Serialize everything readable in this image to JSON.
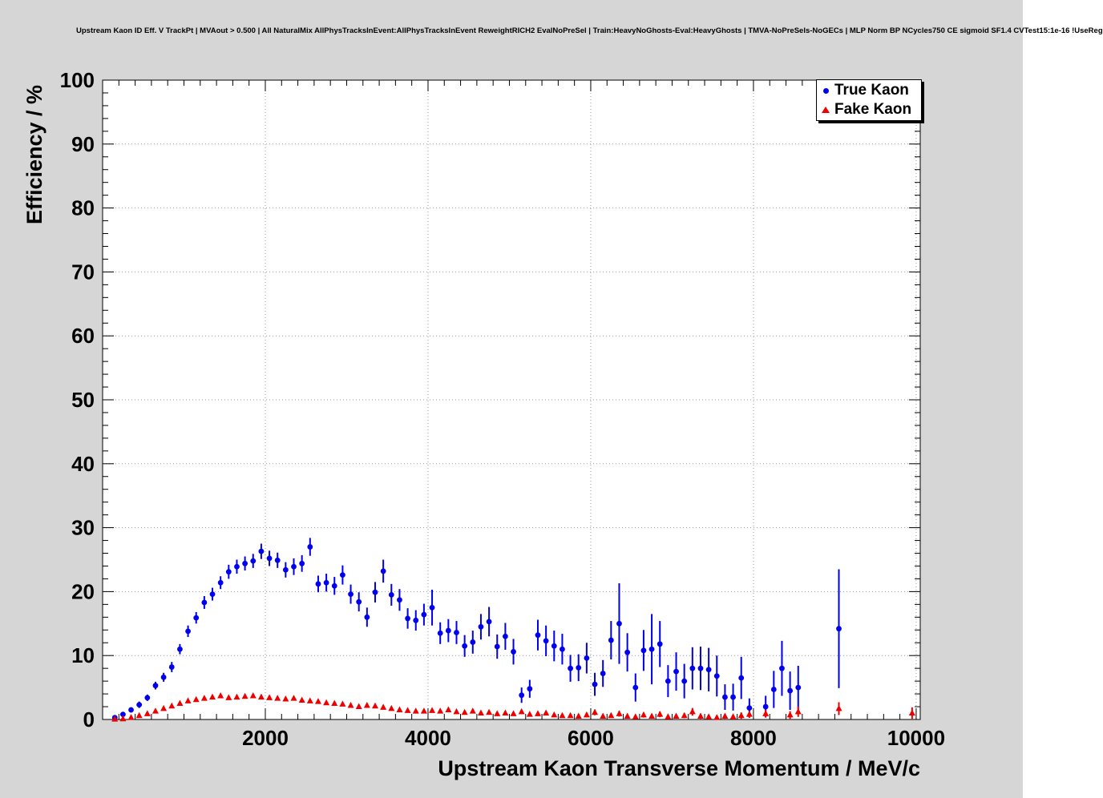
{
  "chart_data": {
    "type": "scatter",
    "title": "Upstream Kaon ID Eff. V TrackPt | MVAout > 0.500 | All NaturalMix AllPhysTracksInEvent:AllPhysTracksInEvent ReweightRICH2 EvalNoPreSel | Train:HeavyNoGhosts-Eval:HeavyGhosts | TMVA-NoPreSels-NoGECs | MLP Norm BP NCycles750 CE sigmoid SF1.4 CVTest15:1e-16 !UseReg",
    "xlabel": "Upstream Kaon Transverse Momentum / MeV/c",
    "ylabel": "Efficiency / %",
    "xlim": [
      0,
      10050
    ],
    "ylim": [
      0,
      100
    ],
    "x_ticks": [
      2000,
      4000,
      6000,
      8000,
      10000
    ],
    "y_ticks": [
      0,
      10,
      20,
      30,
      40,
      50,
      60,
      70,
      80,
      90,
      100
    ],
    "grid": true,
    "colors": {
      "true_kaon": "#0000ee",
      "fake_kaon": "#ee0000",
      "grid": "#999999",
      "frame_bg": "#ffffff",
      "page_bg": "#d6d6d6"
    },
    "legend": {
      "position": "top-right",
      "entries": [
        {
          "label": "True Kaon",
          "marker": "circle",
          "color": "#0000ee"
        },
        {
          "label": "Fake Kaon",
          "marker": "triangle",
          "color": "#ee0000"
        }
      ]
    },
    "series": [
      {
        "name": "True Kaon",
        "marker": "circle",
        "color": "#0000ee",
        "points": [
          [
            150,
            0.3,
            0.2
          ],
          [
            250,
            0.8,
            0.3
          ],
          [
            350,
            1.5,
            0.4
          ],
          [
            450,
            2.3,
            0.5
          ],
          [
            550,
            3.4,
            0.5
          ],
          [
            650,
            5.3,
            0.6
          ],
          [
            750,
            6.6,
            0.7
          ],
          [
            850,
            8.2,
            0.8
          ],
          [
            950,
            11.0,
            0.8
          ],
          [
            1050,
            13.8,
            0.9
          ],
          [
            1150,
            15.9,
            0.9
          ],
          [
            1250,
            18.3,
            1.0
          ],
          [
            1350,
            19.6,
            1.0
          ],
          [
            1450,
            21.4,
            1.0
          ],
          [
            1550,
            23.1,
            1.1
          ],
          [
            1650,
            23.9,
            1.1
          ],
          [
            1750,
            24.4,
            1.1
          ],
          [
            1850,
            24.8,
            1.1
          ],
          [
            1950,
            26.3,
            1.2
          ],
          [
            2050,
            25.2,
            1.2
          ],
          [
            2150,
            24.9,
            1.2
          ],
          [
            2250,
            23.4,
            1.2
          ],
          [
            2350,
            23.9,
            1.3
          ],
          [
            2450,
            24.4,
            1.3
          ],
          [
            2550,
            27.0,
            1.4
          ],
          [
            2650,
            21.2,
            1.3
          ],
          [
            2750,
            21.4,
            1.4
          ],
          [
            2850,
            20.9,
            1.4
          ],
          [
            2950,
            22.6,
            1.5
          ],
          [
            3050,
            19.6,
            1.5
          ],
          [
            3150,
            18.4,
            1.5
          ],
          [
            3250,
            16.0,
            1.5
          ],
          [
            3350,
            19.9,
            1.6
          ],
          [
            3450,
            23.2,
            1.8
          ],
          [
            3550,
            19.5,
            1.7
          ],
          [
            3650,
            18.7,
            1.7
          ],
          [
            3750,
            15.8,
            1.6
          ],
          [
            3850,
            15.5,
            1.6
          ],
          [
            3950,
            16.4,
            1.7
          ],
          [
            4050,
            17.5,
            2.8
          ],
          [
            4150,
            13.5,
            1.7
          ],
          [
            4250,
            13.9,
            1.8
          ],
          [
            4350,
            13.6,
            1.8
          ],
          [
            4450,
            11.5,
            1.7
          ],
          [
            4550,
            12.1,
            1.8
          ],
          [
            4650,
            14.5,
            2.0
          ],
          [
            4750,
            15.3,
            2.3
          ],
          [
            4850,
            11.4,
            1.9
          ],
          [
            4950,
            13.0,
            2.1
          ],
          [
            5050,
            10.6,
            2.0
          ],
          [
            5150,
            3.8,
            1.2
          ],
          [
            5250,
            4.8,
            1.4
          ],
          [
            5350,
            13.2,
            2.4
          ],
          [
            5450,
            12.3,
            2.4
          ],
          [
            5550,
            11.5,
            2.4
          ],
          [
            5650,
            11.0,
            2.4
          ],
          [
            5750,
            8.0,
            2.1
          ],
          [
            5850,
            8.1,
            2.1
          ],
          [
            5950,
            9.6,
            2.4
          ],
          [
            6050,
            5.5,
            1.8
          ],
          [
            6150,
            7.2,
            2.1
          ],
          [
            6250,
            12.4,
            3.0
          ],
          [
            6350,
            15.0,
            6.3
          ],
          [
            6450,
            10.5,
            3.0
          ],
          [
            6550,
            5.0,
            2.2
          ],
          [
            6650,
            10.8,
            3.2
          ],
          [
            6750,
            11.0,
            5.5
          ],
          [
            6850,
            11.8,
            3.6
          ],
          [
            6950,
            6.0,
            2.5
          ],
          [
            7050,
            7.5,
            3.0
          ],
          [
            7150,
            6.0,
            2.7
          ],
          [
            7250,
            8.0,
            3.3
          ],
          [
            7350,
            8.0,
            3.4
          ],
          [
            7450,
            7.8,
            3.4
          ],
          [
            7550,
            6.8,
            3.2
          ],
          [
            7650,
            3.5,
            2.0
          ],
          [
            7750,
            3.5,
            2.1
          ],
          [
            7850,
            6.5,
            3.3
          ],
          [
            7950,
            1.8,
            1.5
          ],
          [
            8150,
            2.0,
            1.7
          ],
          [
            8250,
            4.7,
            2.9
          ],
          [
            8350,
            8.0,
            4.3
          ],
          [
            8450,
            4.5,
            3.0
          ],
          [
            8550,
            5.0,
            3.4
          ],
          [
            9050,
            14.2,
            9.3
          ]
        ]
      },
      {
        "name": "Fake Kaon",
        "marker": "triangle",
        "color": "#ee0000",
        "points": [
          [
            150,
            0.05,
            0.05
          ],
          [
            250,
            0.1,
            0.05
          ],
          [
            350,
            0.3,
            0.1
          ],
          [
            450,
            0.6,
            0.1
          ],
          [
            550,
            0.9,
            0.15
          ],
          [
            650,
            1.3,
            0.2
          ],
          [
            750,
            1.7,
            0.2
          ],
          [
            850,
            2.1,
            0.2
          ],
          [
            950,
            2.5,
            0.25
          ],
          [
            1050,
            2.9,
            0.25
          ],
          [
            1150,
            3.1,
            0.3
          ],
          [
            1250,
            3.3,
            0.3
          ],
          [
            1350,
            3.5,
            0.3
          ],
          [
            1450,
            3.7,
            0.3
          ],
          [
            1550,
            3.4,
            0.3
          ],
          [
            1650,
            3.5,
            0.3
          ],
          [
            1750,
            3.6,
            0.3
          ],
          [
            1850,
            3.7,
            0.3
          ],
          [
            1950,
            3.5,
            0.3
          ],
          [
            2050,
            3.4,
            0.3
          ],
          [
            2150,
            3.3,
            0.3
          ],
          [
            2250,
            3.2,
            0.3
          ],
          [
            2350,
            3.3,
            0.3
          ],
          [
            2450,
            3.0,
            0.3
          ],
          [
            2550,
            2.9,
            0.3
          ],
          [
            2650,
            2.8,
            0.3
          ],
          [
            2750,
            2.6,
            0.3
          ],
          [
            2850,
            2.5,
            0.3
          ],
          [
            2950,
            2.4,
            0.3
          ],
          [
            3050,
            2.2,
            0.3
          ],
          [
            3150,
            2.0,
            0.25
          ],
          [
            3250,
            2.2,
            0.3
          ],
          [
            3350,
            2.1,
            0.3
          ],
          [
            3450,
            1.9,
            0.25
          ],
          [
            3550,
            1.7,
            0.25
          ],
          [
            3650,
            1.5,
            0.25
          ],
          [
            3750,
            1.4,
            0.25
          ],
          [
            3850,
            1.3,
            0.2
          ],
          [
            3950,
            1.3,
            0.25
          ],
          [
            4050,
            1.4,
            0.25
          ],
          [
            4150,
            1.3,
            0.25
          ],
          [
            4250,
            1.5,
            0.3
          ],
          [
            4350,
            1.2,
            0.25
          ],
          [
            4450,
            1.1,
            0.25
          ],
          [
            4550,
            1.3,
            0.3
          ],
          [
            4650,
            1.0,
            0.25
          ],
          [
            4750,
            1.1,
            0.3
          ],
          [
            4850,
            0.9,
            0.25
          ],
          [
            4950,
            1.0,
            0.3
          ],
          [
            5050,
            0.9,
            0.3
          ],
          [
            5150,
            1.2,
            0.35
          ],
          [
            5250,
            0.8,
            0.3
          ],
          [
            5350,
            0.9,
            0.3
          ],
          [
            5450,
            1.0,
            0.35
          ],
          [
            5550,
            0.7,
            0.3
          ],
          [
            5650,
            0.6,
            0.3
          ],
          [
            5750,
            0.6,
            0.3
          ],
          [
            5850,
            0.5,
            0.3
          ],
          [
            5950,
            0.7,
            0.35
          ],
          [
            6050,
            1.1,
            0.45
          ],
          [
            6150,
            0.5,
            0.3
          ],
          [
            6250,
            0.6,
            0.35
          ],
          [
            6350,
            0.9,
            0.45
          ],
          [
            6450,
            0.5,
            0.3
          ],
          [
            6550,
            0.4,
            0.3
          ],
          [
            6650,
            0.7,
            0.4
          ],
          [
            6750,
            0.5,
            0.35
          ],
          [
            6850,
            0.8,
            0.45
          ],
          [
            6950,
            0.4,
            0.3
          ],
          [
            7050,
            0.5,
            0.35
          ],
          [
            7150,
            0.6,
            0.4
          ],
          [
            7250,
            1.2,
            0.6
          ],
          [
            7350,
            0.5,
            0.4
          ],
          [
            7450,
            0.4,
            0.35
          ],
          [
            7550,
            0.3,
            0.3
          ],
          [
            7650,
            0.5,
            0.4
          ],
          [
            7750,
            0.4,
            0.4
          ],
          [
            7850,
            0.6,
            0.5
          ],
          [
            7950,
            0.8,
            0.55
          ],
          [
            8150,
            0.9,
            0.6
          ],
          [
            8450,
            0.7,
            0.6
          ],
          [
            8550,
            1.2,
            0.8
          ],
          [
            9050,
            1.7,
            1.0
          ],
          [
            9950,
            1.0,
            0.9
          ]
        ]
      }
    ]
  }
}
